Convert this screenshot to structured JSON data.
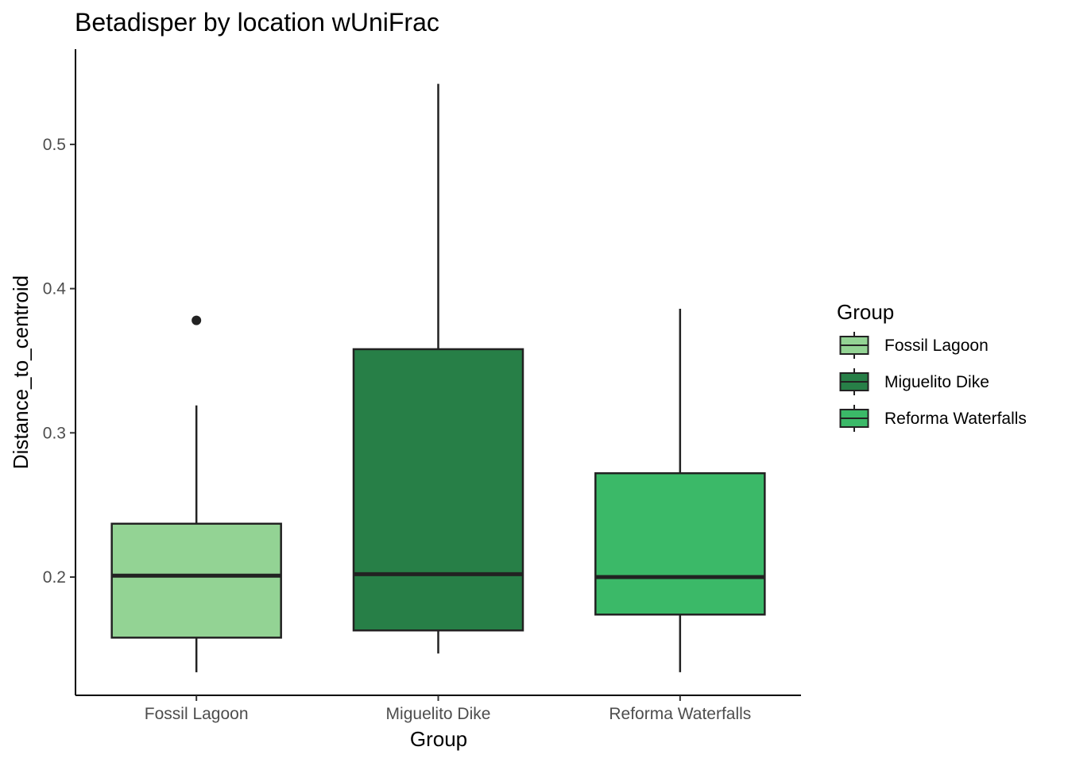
{
  "chart_data": {
    "type": "boxplot",
    "title": "Betadisper by location wUniFrac",
    "xlabel": "Group",
    "ylabel": "Distance_to_centroid",
    "ylim": [
      0.118,
      0.566
    ],
    "yticks": [
      0.2,
      0.3,
      0.4,
      0.5
    ],
    "ytick_labels": [
      "0.2",
      "0.3",
      "0.4",
      "0.5"
    ],
    "grid": false,
    "legend": {
      "title": "Group",
      "placement": "right"
    },
    "categories": [
      "Fossil Lagoon",
      "Miguelito Dike",
      "Reforma Waterfalls"
    ],
    "series": [
      {
        "name": "Fossil Lagoon",
        "color": "#93d394",
        "whisker_low": 0.134,
        "q1": 0.158,
        "median": 0.201,
        "q3": 0.237,
        "whisker_high": 0.319,
        "outliers": [
          0.378
        ]
      },
      {
        "name": "Miguelito Dike",
        "color": "#277f47",
        "whisker_low": 0.147,
        "q1": 0.163,
        "median": 0.202,
        "q3": 0.358,
        "whisker_high": 0.542,
        "outliers": []
      },
      {
        "name": "Reforma Waterfalls",
        "color": "#3bb968",
        "whisker_low": 0.134,
        "q1": 0.174,
        "median": 0.2,
        "q3": 0.272,
        "whisker_high": 0.386,
        "outliers": []
      }
    ]
  }
}
